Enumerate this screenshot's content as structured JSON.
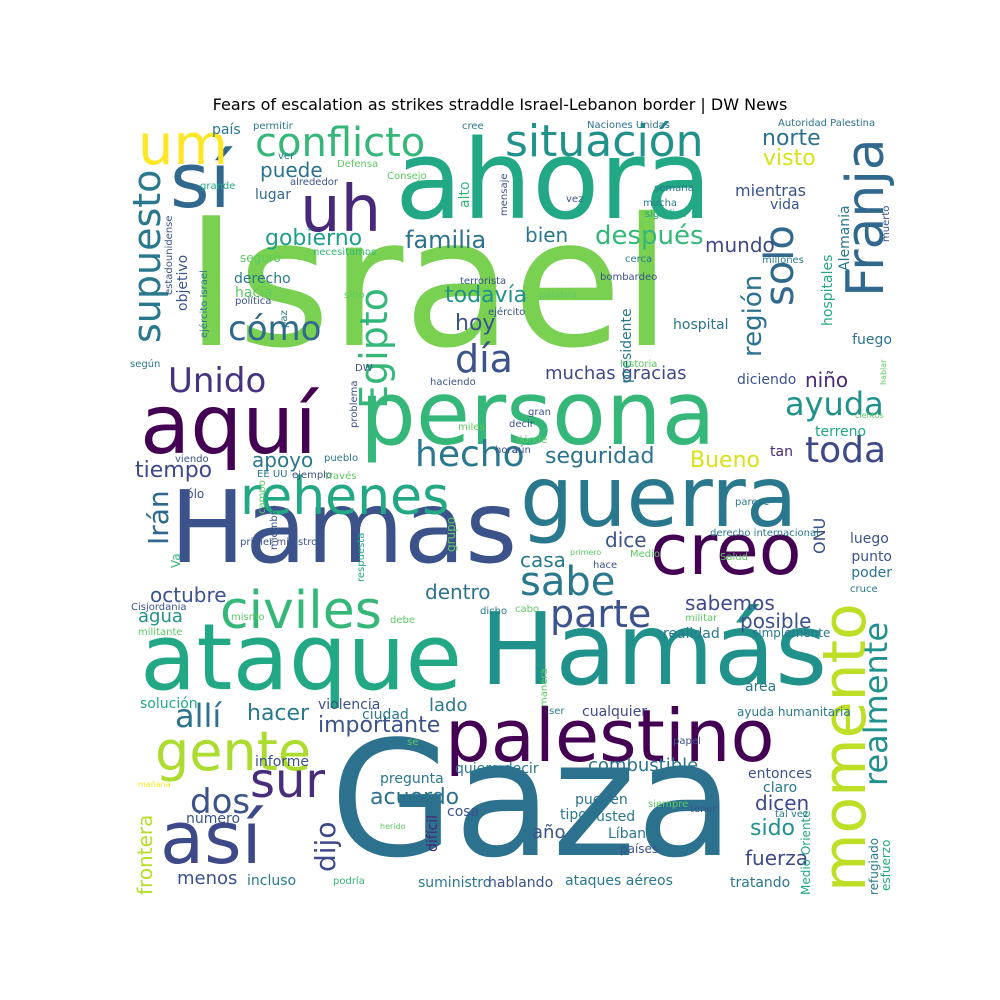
{
  "title": "Fears of escalation as strikes straddle Israel-Lebanon border | DW News",
  "palette": [
    "#440154",
    "#46327e",
    "#365c8d",
    "#277f8e",
    "#1fa187",
    "#4ac16d",
    "#a0da39",
    "#fde725"
  ],
  "words": [
    {
      "text": "Israel",
      "c": "#7ad151"
    },
    {
      "text": "Gaza",
      "c": "#2c728e"
    },
    {
      "text": "ahora",
      "c": "#22a884"
    },
    {
      "text": "persona",
      "c": "#35b779"
    },
    {
      "text": "Hamas",
      "c": "#3b528b"
    },
    {
      "text": "Hamás",
      "c": "#21918c"
    },
    {
      "text": "guerra",
      "c": "#2a788e"
    },
    {
      "text": "ataque",
      "c": "#22a884"
    },
    {
      "text": "aquí",
      "c": "#440154"
    },
    {
      "text": "palestino",
      "c": "#440154"
    },
    {
      "text": "creo",
      "c": "#440154"
    },
    {
      "text": "sí",
      "c": "#31688e"
    },
    {
      "text": "así",
      "c": "#3e4989"
    },
    {
      "text": "Franja",
      "c": "#31688e"
    },
    {
      "text": "uh",
      "c": "#482878"
    },
    {
      "text": "um",
      "c": "#fde725"
    },
    {
      "text": "momento",
      "c": "#bddf26"
    },
    {
      "text": "rehenes",
      "c": "#22a884"
    },
    {
      "text": "civiles",
      "c": "#35b779"
    },
    {
      "text": "gente",
      "c": "#addc30"
    },
    {
      "text": "situación",
      "c": "#21918c"
    },
    {
      "text": "conflicto",
      "c": "#35b779"
    },
    {
      "text": "sur",
      "c": "#472d7b"
    },
    {
      "text": "supuesto",
      "c": "#2a788e"
    },
    {
      "text": "solo",
      "c": "#31688e"
    },
    {
      "text": "cómo",
      "c": "#31688e"
    },
    {
      "text": "Egipto",
      "c": "#35b779"
    },
    {
      "text": "día",
      "c": "#3b528b"
    },
    {
      "text": "Unido",
      "c": "#46327e"
    },
    {
      "text": "realmente",
      "c": "#21918c"
    },
    {
      "text": "ayuda",
      "c": "#21918c"
    },
    {
      "text": "hecho",
      "c": "#2a788e"
    },
    {
      "text": "toda",
      "c": "#3e4989"
    },
    {
      "text": "sabe",
      "c": "#2a788e"
    },
    {
      "text": "parte",
      "c": "#3b528b"
    },
    {
      "text": "región",
      "c": "#2c728e"
    },
    {
      "text": "dos",
      "c": "#3b528b"
    },
    {
      "text": "allí",
      "c": "#2c728e"
    },
    {
      "text": "Irán",
      "c": "#31688e"
    },
    {
      "text": "familia",
      "c": "#2c728e"
    },
    {
      "text": "después",
      "c": "#35b779"
    },
    {
      "text": "gobierno",
      "c": "#1f9e89"
    },
    {
      "text": "norte",
      "c": "#2c728e"
    },
    {
      "text": "visto",
      "c": "#d8e219"
    },
    {
      "text": "puede",
      "c": "#2c728e"
    },
    {
      "text": "todavía",
      "c": "#21918c"
    },
    {
      "text": "hoy",
      "c": "#3b528b"
    },
    {
      "text": "bien",
      "c": "#2a788e"
    },
    {
      "text": "mundo",
      "c": "#3e4989"
    },
    {
      "text": "muchas gracias",
      "c": "#3e4989"
    },
    {
      "text": "niño",
      "c": "#482878"
    },
    {
      "text": "seguridad",
      "c": "#2c728e"
    },
    {
      "text": "Bueno",
      "c": "#d8e219"
    },
    {
      "text": "tiempo",
      "c": "#3e4989"
    },
    {
      "text": "apoyo",
      "c": "#2a788e"
    },
    {
      "text": "hacer",
      "c": "#2a788e"
    },
    {
      "text": "importante",
      "c": "#3b528b"
    },
    {
      "text": "dijo",
      "c": "#3e4989"
    },
    {
      "text": "acuerdo",
      "c": "#2c728e"
    },
    {
      "text": "sabemos",
      "c": "#3e4989"
    },
    {
      "text": "posible",
      "c": "#3b528b"
    },
    {
      "text": "dice",
      "c": "#3b528b"
    },
    {
      "text": "casa",
      "c": "#2a788e"
    },
    {
      "text": "dentro",
      "c": "#2c728e"
    },
    {
      "text": "octubre",
      "c": "#3b528b"
    },
    {
      "text": "agua",
      "c": "#21918c"
    },
    {
      "text": "lado",
      "c": "#2a788e"
    },
    {
      "text": "combustible",
      "c": "#2c728e"
    },
    {
      "text": "sido",
      "c": "#21918c"
    },
    {
      "text": "fuerza",
      "c": "#3e4989"
    },
    {
      "text": "dicen",
      "c": "#3e4989"
    },
    {
      "text": "año",
      "c": "#3b528b"
    },
    {
      "text": "menos",
      "c": "#3b528b"
    },
    {
      "text": "frontera",
      "c": "#b5de2b"
    },
    {
      "text": "mientras",
      "c": "#3b528b"
    },
    {
      "text": "vida",
      "c": "#3b528b"
    },
    {
      "text": "lugar",
      "c": "#31688e"
    },
    {
      "text": "hospital",
      "c": "#2c728e"
    },
    {
      "text": "fuego",
      "c": "#2c728e"
    },
    {
      "text": "diciendo",
      "c": "#3b528b"
    },
    {
      "text": "terreno",
      "c": "#22a884"
    },
    {
      "text": "tan",
      "c": "#482878"
    },
    {
      "text": "ONU",
      "c": "#3b528b"
    },
    {
      "text": "luego",
      "c": "#3b528b"
    },
    {
      "text": "punto",
      "c": "#3b528b"
    },
    {
      "text": "poder",
      "c": "#2c728e"
    },
    {
      "text": "realidad",
      "c": "#2a788e"
    },
    {
      "text": "simplemente",
      "c": "#2a788e"
    },
    {
      "text": "área",
      "c": "#2a788e"
    },
    {
      "text": "ayuda humanitaria",
      "c": "#2a788e"
    },
    {
      "text": "cualquier",
      "c": "#3e4989"
    },
    {
      "text": "ciudad",
      "c": "#2a788e"
    },
    {
      "text": "solución",
      "c": "#22a884"
    },
    {
      "text": "violencia",
      "c": "#3b528b"
    },
    {
      "text": "informe",
      "c": "#3b528b"
    },
    {
      "text": "pregunta",
      "c": "#2a788e"
    },
    {
      "text": "quiero decir",
      "c": "#2a788e"
    },
    {
      "text": "pueden",
      "c": "#2c728e"
    },
    {
      "text": "cosa",
      "c": "#3b528b"
    },
    {
      "text": "tipo",
      "c": "#2a788e"
    },
    {
      "text": "usted",
      "c": "#2a788e"
    },
    {
      "text": "Líbano",
      "c": "#2a788e"
    },
    {
      "text": "países",
      "c": "#3b528b"
    },
    {
      "text": "número",
      "c": "#3b528b"
    },
    {
      "text": "incluso",
      "c": "#2a788e"
    },
    {
      "text": "suministro",
      "c": "#2a788e"
    },
    {
      "text": "hablando",
      "c": "#3b528b"
    },
    {
      "text": "ataques aéreos",
      "c": "#2a788e"
    },
    {
      "text": "tratando",
      "c": "#2a788e"
    },
    {
      "text": "entonces",
      "c": "#3b528b"
    },
    {
      "text": "claro",
      "c": "#2a788e"
    },
    {
      "text": "tener",
      "c": "#3b528b"
    },
    {
      "text": "Medio Oriente",
      "c": "#22a884"
    },
    {
      "text": "esfuerzo",
      "c": "#22a884"
    },
    {
      "text": "refugiado",
      "c": "#2a788e"
    },
    {
      "text": "tal vez",
      "c": "#2a788e"
    },
    {
      "text": "difícil",
      "c": "#482878"
    },
    {
      "text": "podría",
      "c": "#35b779"
    },
    {
      "text": "país",
      "c": "#2a788e"
    },
    {
      "text": "permitir",
      "c": "#2a788e"
    },
    {
      "text": "cree",
      "c": "#2a788e"
    },
    {
      "text": "Naciones Unidas",
      "c": "#2c728e"
    },
    {
      "text": "Autoridad Palestina",
      "c": "#2c728e"
    },
    {
      "text": "ver",
      "c": "#2a788e"
    },
    {
      "text": "Defensa",
      "c": "#5ec962"
    },
    {
      "text": "Consejo",
      "c": "#5ec962"
    },
    {
      "text": "alto",
      "c": "#35b779"
    },
    {
      "text": "mensaje",
      "c": "#3b528b"
    },
    {
      "text": "vez",
      "c": "#3b528b"
    },
    {
      "text": "semana",
      "c": "#2a788e"
    },
    {
      "text": "mucha",
      "c": "#2a788e"
    },
    {
      "text": "significa",
      "c": "#22a884"
    },
    {
      "text": "grande",
      "c": "#22a884"
    },
    {
      "text": "alrededor",
      "c": "#3b528b"
    },
    {
      "text": "estadounidense",
      "c": "#3b528b"
    },
    {
      "text": "necesitamos",
      "c": "#35b779"
    },
    {
      "text": "seguro",
      "c": "#5ec962"
    },
    {
      "text": "cerca",
      "c": "#2a788e"
    },
    {
      "text": "millones",
      "c": "#2a788e"
    },
    {
      "text": "objetivo",
      "c": "#3b528b"
    },
    {
      "text": "ejército Israel",
      "c": "#2a788e"
    },
    {
      "text": "derecho",
      "c": "#2a788e"
    },
    {
      "text": "hacia",
      "c": "#5ec962"
    },
    {
      "text": "política",
      "c": "#3b528b"
    },
    {
      "text": "terrorista",
      "c": "#3b528b"
    },
    {
      "text": "bombardeo",
      "c": "#3b528b"
    },
    {
      "text": "sino",
      "c": "#5ec962"
    },
    {
      "text": "palabra",
      "c": "#5ec962"
    },
    {
      "text": "ejército",
      "c": "#3b528b"
    },
    {
      "text": "presidente",
      "c": "#2a788e"
    },
    {
      "text": "paz",
      "c": "#2a788e"
    },
    {
      "text": "según",
      "c": "#2a788e"
    },
    {
      "text": "historia",
      "c": "#5ec962"
    },
    {
      "text": "hospitales",
      "c": "#22a884"
    },
    {
      "text": "Alemania",
      "c": "#2a788e"
    },
    {
      "text": "muerto",
      "c": "#3b528b"
    },
    {
      "text": "hablar",
      "c": "#5ec962"
    },
    {
      "text": "cientos",
      "c": "#5ec962"
    },
    {
      "text": "DW",
      "c": "#3b528b"
    },
    {
      "text": "haciendo",
      "c": "#3b528b"
    },
    {
      "text": "problema",
      "c": "#3b528b"
    },
    {
      "text": "gran",
      "c": "#3b528b"
    },
    {
      "text": "miles",
      "c": "#5ec962"
    },
    {
      "text": "dónde",
      "c": "#5ec962"
    },
    {
      "text": "hora",
      "c": "#3b528b"
    },
    {
      "text": "viendo",
      "c": "#3b528b"
    },
    {
      "text": "EE UU",
      "c": "#2a788e"
    },
    {
      "text": "ejemplo",
      "c": "#3b528b"
    },
    {
      "text": "pueblo",
      "c": "#2a788e"
    },
    {
      "text": "través",
      "c": "#5ec962"
    },
    {
      "text": "sólo",
      "c": "#3b528b"
    },
    {
      "text": "campo",
      "c": "#5ec962"
    },
    {
      "text": "primer ministro",
      "c": "#3b528b"
    },
    {
      "text": "miembro",
      "c": "#3b528b"
    },
    {
      "text": "respuesta",
      "c": "#22a884"
    },
    {
      "text": "grupo",
      "c": "#5ec962"
    },
    {
      "text": "primero",
      "c": "#5ec962"
    },
    {
      "text": "parece",
      "c": "#2a788e"
    },
    {
      "text": "derecho internacional",
      "c": "#2a788e"
    },
    {
      "text": "Medio",
      "c": "#5ec962"
    },
    {
      "text": "Salud",
      "c": "#5ec962"
    },
    {
      "text": "hace",
      "c": "#3b528b"
    },
    {
      "text": "cruce",
      "c": "#2a788e"
    },
    {
      "text": "Cisjordania",
      "c": "#3b528b"
    },
    {
      "text": "mismo",
      "c": "#5ec962"
    },
    {
      "text": "debe",
      "c": "#5ec962"
    },
    {
      "text": "dicho",
      "c": "#2a788e"
    },
    {
      "text": "cabo",
      "c": "#5ec962"
    },
    {
      "text": "militar",
      "c": "#5ec962"
    },
    {
      "text": "militante",
      "c": "#5ec962"
    },
    {
      "text": "manera",
      "c": "#5ec962"
    },
    {
      "text": "ser",
      "c": "#2a788e"
    },
    {
      "text": "decir",
      "c": "#3b528b"
    },
    {
      "text": "aún",
      "c": "#3b528b"
    },
    {
      "text": "papel",
      "c": "#3b528b"
    },
    {
      "text": "se",
      "c": "#5ec962"
    },
    {
      "text": "mañana",
      "c": "#fde725"
    },
    {
      "text": "herido",
      "c": "#5ec962"
    },
    {
      "text": "siempre",
      "c": "#5ec962"
    },
    {
      "text": "Va",
      "c": "#35b779"
    }
  ]
}
